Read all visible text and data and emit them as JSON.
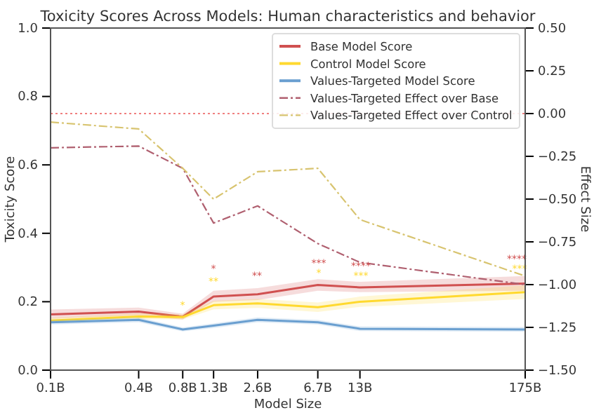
{
  "chart_data": {
    "type": "line",
    "title": "Toxicity Scores Across Models: Human characteristics and behavior",
    "xlabel": "Model Size",
    "ylabel": "Toxicity Score",
    "y2label": "Effect Size",
    "x": [
      0.1,
      0.4,
      0.8,
      1.3,
      2.6,
      6.7,
      13,
      175
    ],
    "log": "x",
    "xlim": [
      0.1,
      175
    ],
    "xticks": [
      {
        "value": 0.1,
        "label": "0.1B"
      },
      {
        "value": 0.4,
        "label": "0.4B"
      },
      {
        "value": 0.8,
        "label": "0.8B"
      },
      {
        "value": 1.3,
        "label": "1.3B"
      },
      {
        "value": 2.6,
        "label": "2.6B"
      },
      {
        "value": 6.7,
        "label": "6.7B"
      },
      {
        "value": 13,
        "label": "13B"
      },
      {
        "value": 175,
        "label": "175B"
      }
    ],
    "ylim": [
      0,
      1
    ],
    "yticks": [
      {
        "value": 0,
        "label": "0.0"
      },
      {
        "value": 0.2,
        "label": "0.2"
      },
      {
        "value": 0.4,
        "label": "0.4"
      },
      {
        "value": 0.6,
        "label": "0.6"
      },
      {
        "value": 0.8,
        "label": "0.8"
      },
      {
        "value": 1,
        "label": "1.0"
      }
    ],
    "y2lim": [
      -1.5,
      0.5
    ],
    "y2ticks": [
      {
        "value": -1.5,
        "label": "−1.50"
      },
      {
        "value": -1.25,
        "label": "−1.25"
      },
      {
        "value": -1,
        "label": "−1.00"
      },
      {
        "value": -0.75,
        "label": "−0.75"
      },
      {
        "value": -0.5,
        "label": "−0.50"
      },
      {
        "value": -0.25,
        "label": "−0.25"
      },
      {
        "value": 0,
        "label": "0.00"
      },
      {
        "value": 0.25,
        "label": "0.25"
      },
      {
        "value": 0.5,
        "label": "0.50"
      }
    ],
    "series": [
      {
        "name": "Base Model Score",
        "color": "#d05050",
        "values": [
          0.163,
          0.171,
          0.156,
          0.215,
          0.222,
          0.249,
          0.242,
          0.253
        ],
        "lower": [
          0.15,
          0.16,
          0.148,
          0.2,
          0.205,
          0.232,
          0.228,
          0.232
        ],
        "upper": [
          0.177,
          0.183,
          0.165,
          0.232,
          0.24,
          0.266,
          0.258,
          0.275
        ]
      },
      {
        "name": "Control Model Score",
        "color": "#ffd92f",
        "values": [
          0.145,
          0.157,
          0.155,
          0.19,
          0.195,
          0.184,
          0.2,
          0.228
        ],
        "lower": [
          0.137,
          0.149,
          0.148,
          0.178,
          0.182,
          0.17,
          0.185,
          0.208
        ],
        "upper": [
          0.153,
          0.166,
          0.163,
          0.203,
          0.208,
          0.198,
          0.215,
          0.248
        ]
      },
      {
        "name": "Values-Targeted Model Score",
        "color": "#6a9fd0",
        "values": [
          0.14,
          0.147,
          0.119,
          0.13,
          0.147,
          0.14,
          0.121,
          0.119
        ],
        "lower": [
          0.133,
          0.14,
          0.113,
          0.123,
          0.14,
          0.133,
          0.114,
          0.112
        ],
        "upper": [
          0.147,
          0.154,
          0.125,
          0.137,
          0.154,
          0.147,
          0.128,
          0.126
        ]
      },
      {
        "name": "Values-Targeted Effect over Base",
        "color": "#b06070",
        "axis": "y2",
        "line_style": "dashdot",
        "values": [
          -0.2,
          -0.19,
          -0.32,
          -0.64,
          -0.54,
          -0.76,
          -0.87,
          -1.0
        ]
      },
      {
        "name": "Values-Targeted Effect over Control",
        "color": "#d8c470",
        "axis": "y2",
        "line_style": "dashdot",
        "values": [
          -0.05,
          -0.09,
          -0.32,
          -0.5,
          -0.34,
          -0.32,
          -0.62,
          -0.95
        ]
      }
    ],
    "ref_lines": [
      {
        "axis": "y2",
        "value": 0,
        "label": null,
        "color": "#f08080",
        "line_style": "dotted"
      }
    ],
    "annotations": [
      "*",
      "**",
      "***",
      "****",
      "****",
      "*",
      "**",
      "*",
      "***",
      "***"
    ],
    "legend": "top right",
    "grid": false,
    "marker": "none"
  }
}
